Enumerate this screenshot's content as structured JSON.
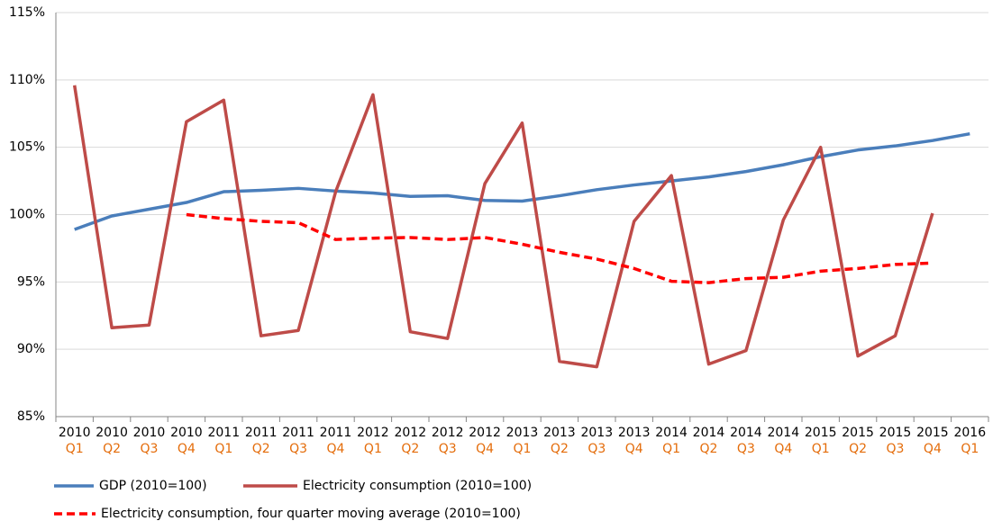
{
  "chart_data": {
    "type": "line",
    "categories": [
      [
        "2010",
        "Q1"
      ],
      [
        "2010",
        "Q2"
      ],
      [
        "2010",
        "Q3"
      ],
      [
        "2010",
        "Q4"
      ],
      [
        "2011",
        "Q1"
      ],
      [
        "2011",
        "Q2"
      ],
      [
        "2011",
        "Q3"
      ],
      [
        "2011",
        "Q4"
      ],
      [
        "2012",
        "Q1"
      ],
      [
        "2012",
        "Q2"
      ],
      [
        "2012",
        "Q3"
      ],
      [
        "2012",
        "Q4"
      ],
      [
        "2013",
        "Q1"
      ],
      [
        "2013",
        "Q2"
      ],
      [
        "2013",
        "Q3"
      ],
      [
        "2013",
        "Q4"
      ],
      [
        "2014",
        "Q1"
      ],
      [
        "2014",
        "Q2"
      ],
      [
        "2014",
        "Q3"
      ],
      [
        "2014",
        "Q4"
      ],
      [
        "2015",
        "Q1"
      ],
      [
        "2015",
        "Q2"
      ],
      [
        "2015",
        "Q3"
      ],
      [
        "2015",
        "Q4"
      ],
      [
        "2016",
        "Q1"
      ]
    ],
    "series": [
      {
        "name": "GDP (2010=100)",
        "color": "#4a7ebb",
        "dashed": false,
        "values": [
          98.9,
          99.9,
          100.4,
          100.9,
          101.7,
          101.8,
          101.95,
          101.75,
          101.6,
          101.35,
          101.4,
          101.05,
          101.0,
          101.4,
          101.85,
          102.2,
          102.5,
          102.8,
          103.2,
          103.7,
          104.3,
          104.8,
          105.1,
          105.5,
          106.0
        ]
      },
      {
        "name": "Electricity consumption (2010=100)",
        "color": "#be4b48",
        "dashed": false,
        "values": [
          109.6,
          91.6,
          91.8,
          106.9,
          108.5,
          91.0,
          91.4,
          101.7,
          108.9,
          91.3,
          90.8,
          102.3,
          106.8,
          89.1,
          88.7,
          99.5,
          102.9,
          88.9,
          89.9,
          99.6,
          105.0,
          89.5,
          91.0,
          100.1,
          null
        ]
      },
      {
        "name": "Electricity consumption, four quarter moving average (2010=100)",
        "color": "#ff0000",
        "dashed": true,
        "values": [
          null,
          null,
          null,
          100.0,
          99.7,
          99.5,
          99.4,
          98.15,
          98.25,
          98.3,
          98.15,
          98.3,
          97.8,
          97.2,
          96.7,
          96.0,
          95.05,
          94.95,
          95.25,
          95.35,
          95.8,
          96.0,
          96.3,
          96.4,
          null
        ]
      }
    ],
    "ylim": [
      85,
      115
    ],
    "yticks": [
      {
        "value": 85,
        "label": "85%"
      },
      {
        "value": 90,
        "label": "90%"
      },
      {
        "value": 95,
        "label": "95%"
      },
      {
        "value": 100,
        "label": "100%"
      },
      {
        "value": 105,
        "label": "105%"
      },
      {
        "value": 110,
        "label": "110%"
      },
      {
        "value": 115,
        "label": "115%"
      }
    ],
    "grid": true
  }
}
